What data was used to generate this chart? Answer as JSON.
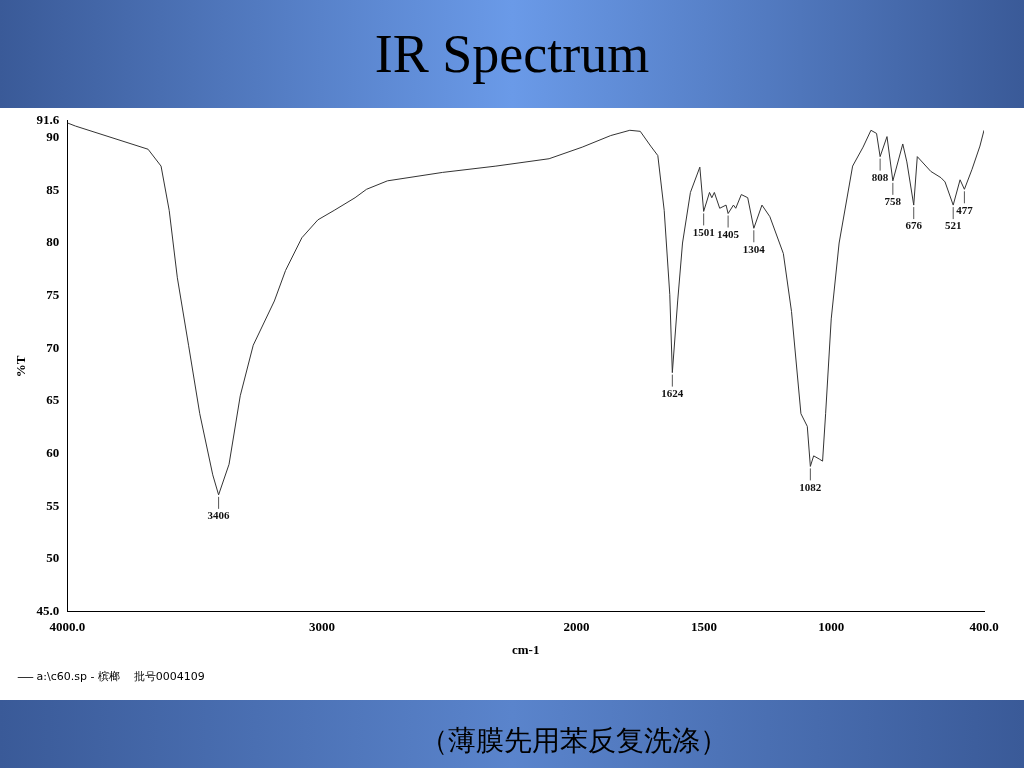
{
  "chart_data": {
    "type": "line",
    "title": "IR Spectrum",
    "xlabel": "cm-1",
    "ylabel": "%T",
    "xlim": [
      4000,
      400
    ],
    "xticks": [
      {
        "value": 4000,
        "label": "4000.0"
      },
      3000,
      2000,
      1500,
      1000,
      {
        "value": 400,
        "label": "400.0"
      }
    ],
    "ylim": [
      45,
      91.6
    ],
    "yticks": [
      {
        "value": 45,
        "label": "45.0"
      },
      50,
      55,
      60,
      65,
      70,
      75,
      80,
      85,
      90,
      91.6
    ],
    "grid": false,
    "legend": "bottom left",
    "marker": "none",
    "line_style": "solid",
    "series": [
      {
        "name": "a:\\c60.sp - 槟榔    批号0004109",
        "color": "#333333",
        "x": [
          4000,
          3968,
          3683,
          3632,
          3600,
          3568,
          3524,
          3480,
          3429,
          3406,
          3365,
          3321,
          3270,
          3187,
          3143,
          3079,
          3016,
          2952,
          2870,
          2825,
          2743,
          2527,
          2317,
          2108,
          1978,
          1866,
          1791,
          1750,
          1709,
          1681,
          1656,
          1634,
          1624,
          1603,
          1584,
          1553,
          1516,
          1501,
          1478,
          1469,
          1459,
          1438,
          1413,
          1405,
          1384,
          1375,
          1353,
          1328,
          1304,
          1272,
          1241,
          1188,
          1156,
          1119,
          1094,
          1082,
          1069,
          1047,
          1034,
          1022,
          1000,
          969,
          916,
          875,
          844,
          822,
          808,
          781,
          758,
          719,
          703,
          676,
          662,
          609,
          569,
          553,
          521,
          494,
          477,
          447,
          416,
          400
        ],
        "values": [
          91.4,
          91.1,
          88.9,
          87.3,
          83.1,
          76.7,
          70.3,
          63.8,
          58.0,
          56.1,
          59.0,
          65.5,
          70.3,
          74.5,
          77.4,
          80.5,
          82.2,
          83.1,
          84.3,
          85.1,
          85.9,
          86.7,
          87.3,
          88.0,
          89.1,
          90.2,
          90.7,
          90.6,
          89.2,
          88.3,
          83.1,
          75.1,
          67.7,
          74.5,
          80.0,
          84.8,
          87.2,
          83.0,
          84.8,
          84.3,
          84.8,
          83.3,
          83.6,
          82.8,
          83.6,
          83.3,
          84.6,
          84.3,
          81.4,
          83.6,
          82.5,
          79.0,
          73.5,
          63.8,
          62.6,
          58.8,
          59.8,
          59.5,
          59.3,
          63.8,
          72.8,
          80.0,
          87.3,
          89.1,
          90.7,
          90.4,
          88.2,
          90.1,
          85.9,
          89.4,
          87.7,
          83.6,
          88.2,
          86.8,
          86.2,
          85.8,
          83.6,
          86.0,
          85.1,
          87.0,
          89.2,
          90.7
        ]
      }
    ],
    "annotations": [
      {
        "text": "3406",
        "x": 3406,
        "y": 56.1
      },
      {
        "text": "1624",
        "x": 1624,
        "y": 67.7
      },
      {
        "text": "1501",
        "x": 1501,
        "y": 83.0
      },
      {
        "text": "1405",
        "x": 1405,
        "y": 82.8
      },
      {
        "text": "1304",
        "x": 1304,
        "y": 81.4
      },
      {
        "text": "1082",
        "x": 1082,
        "y": 58.8
      },
      {
        "text": "808",
        "x": 808,
        "y": 88.2
      },
      {
        "text": "758",
        "x": 758,
        "y": 85.9
      },
      {
        "text": "676",
        "x": 676,
        "y": 83.6
      },
      {
        "text": "521",
        "x": 521,
        "y": 83.6
      },
      {
        "text": "477",
        "x": 477,
        "y": 85.1
      },
      "（薄膜先用苯反复洗涤）"
    ]
  }
}
